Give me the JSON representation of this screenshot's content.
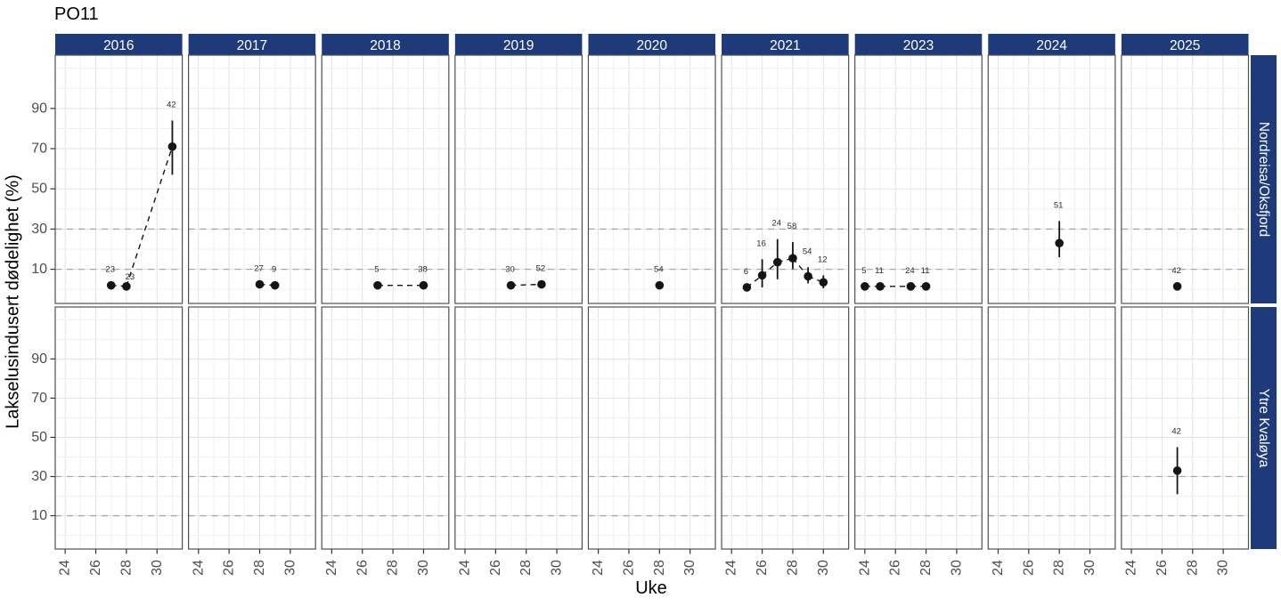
{
  "chart_data": {
    "type": "scatter",
    "title": "PO11",
    "xlabel": "Uke",
    "ylabel": "Lakselusindusert dødelighet (%)",
    "x_ticks": [
      24,
      26,
      28,
      30
    ],
    "x_minor_gridlines": [
      25,
      27,
      29,
      31
    ],
    "x_range": [
      23.35,
      31.65
    ],
    "y_ticks": [
      10,
      30,
      50,
      70,
      90
    ],
    "y_minor_gridlines": [
      0,
      20,
      40,
      60,
      80,
      100,
      110
    ],
    "y_range": [
      -7,
      116.5
    ],
    "dashed_reference_lines": [
      10,
      30
    ],
    "grid": true,
    "legend": "none",
    "col_facets": [
      "2016",
      "2017",
      "2018",
      "2019",
      "2020",
      "2021",
      "2023",
      "2024",
      "2025"
    ],
    "row_facets": [
      "Nordreisa/Oksfjord",
      "Ytre Kvaløya"
    ],
    "colors": {
      "strip_bg": "#1e3a78",
      "strip_text": "#ffffff",
      "point": "#151515",
      "grid_major": "#e2e2e2",
      "grid_minor": "#f1f1f1",
      "dashed_line": "#a8a8a8",
      "panel_border": "#4f4f4f",
      "tick_text": "#4d4d4d",
      "tick_mark": "#333333",
      "point_label": "#2b2b2b"
    },
    "series": [
      {
        "row_facet": "Nordreisa/Oksfjord",
        "col_facet": "2016",
        "points": [
          {
            "week": 27,
            "mortality": 2,
            "ci_low": 2,
            "ci_high": 2,
            "n_label": "23"
          },
          {
            "week": 28,
            "mortality": 1.5,
            "ci_low": 1.5,
            "ci_high": 1.5,
            "n_label": "23",
            "label_dx": 5,
            "label_dy": 7
          },
          {
            "week": 31,
            "mortality": 71,
            "ci_low": 57,
            "ci_high": 84,
            "n_label": "42"
          }
        ]
      },
      {
        "row_facet": "Nordreisa/Oksfjord",
        "col_facet": "2017",
        "points": [
          {
            "week": 28,
            "mortality": 2.5,
            "ci_low": 2.5,
            "ci_high": 2.5,
            "n_label": "27"
          },
          {
            "week": 29,
            "mortality": 2,
            "ci_low": 2,
            "ci_high": 2,
            "n_label": "9"
          }
        ]
      },
      {
        "row_facet": "Nordreisa/Oksfjord",
        "col_facet": "2018",
        "points": [
          {
            "week": 27,
            "mortality": 2,
            "ci_low": 2,
            "ci_high": 2,
            "n_label": "5"
          },
          {
            "week": 30,
            "mortality": 2,
            "ci_low": 2,
            "ci_high": 2,
            "n_label": "38"
          }
        ]
      },
      {
        "row_facet": "Nordreisa/Oksfjord",
        "col_facet": "2019",
        "points": [
          {
            "week": 27,
            "mortality": 2,
            "ci_low": 2,
            "ci_high": 2,
            "n_label": "30"
          },
          {
            "week": 29,
            "mortality": 2.5,
            "ci_low": 2.5,
            "ci_high": 2.5,
            "n_label": "52"
          }
        ]
      },
      {
        "row_facet": "Nordreisa/Oksfjord",
        "col_facet": "2020",
        "points": [
          {
            "week": 28,
            "mortality": 2,
            "ci_low": 2,
            "ci_high": 2,
            "n_label": "54"
          }
        ]
      },
      {
        "row_facet": "Nordreisa/Oksfjord",
        "col_facet": "2021",
        "points": [
          {
            "week": 25,
            "mortality": 1,
            "ci_low": 1,
            "ci_high": 1,
            "n_label": "6"
          },
          {
            "week": 26,
            "mortality": 7,
            "ci_low": 1,
            "ci_high": 15,
            "n_label": "16"
          },
          {
            "week": 27,
            "mortality": 13.5,
            "ci_low": 5,
            "ci_high": 25,
            "n_label": "24"
          },
          {
            "week": 28,
            "mortality": 15.5,
            "ci_low": 10,
            "ci_high": 23.5,
            "n_label": "58"
          },
          {
            "week": 29,
            "mortality": 6.5,
            "ci_low": 3,
            "ci_high": 11,
            "n_label": "54"
          },
          {
            "week": 30,
            "mortality": 3.5,
            "ci_low": 0.5,
            "ci_high": 7,
            "n_label": "12"
          }
        ]
      },
      {
        "row_facet": "Nordreisa/Oksfjord",
        "col_facet": "2023",
        "points": [
          {
            "week": 24,
            "mortality": 1.5,
            "ci_low": 1.5,
            "ci_high": 1.5,
            "n_label": "5"
          },
          {
            "week": 25,
            "mortality": 1.5,
            "ci_low": 1.5,
            "ci_high": 1.5,
            "n_label": "11"
          },
          {
            "week": 27,
            "mortality": 1.5,
            "ci_low": 1.5,
            "ci_high": 1.5,
            "n_label": "24"
          },
          {
            "week": 28,
            "mortality": 1.5,
            "ci_low": 1.5,
            "ci_high": 1.5,
            "n_label": "11"
          }
        ]
      },
      {
        "row_facet": "Nordreisa/Oksfjord",
        "col_facet": "2024",
        "points": [
          {
            "week": 28,
            "mortality": 23,
            "ci_low": 16,
            "ci_high": 34,
            "n_label": "51"
          }
        ]
      },
      {
        "row_facet": "Nordreisa/Oksfjord",
        "col_facet": "2025",
        "points": [
          {
            "week": 27,
            "mortality": 1.5,
            "ci_low": 1.5,
            "ci_high": 1.5,
            "n_label": "42"
          }
        ]
      },
      {
        "row_facet": "Ytre Kvaløya",
        "col_facet": "2025",
        "points": [
          {
            "week": 27,
            "mortality": 33,
            "ci_low": 21,
            "ci_high": 45,
            "n_label": "42"
          }
        ]
      }
    ]
  }
}
